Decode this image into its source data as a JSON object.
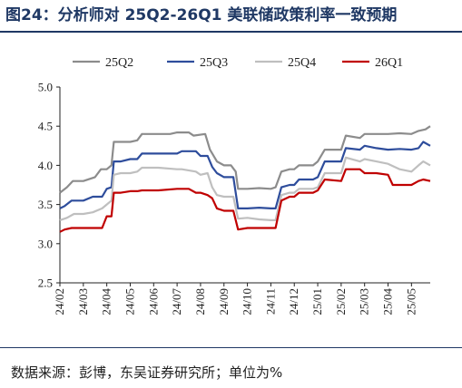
{
  "figure": {
    "title": "图24：分析师对 25Q2-26Q1 美联储政策利率一致预期",
    "source": "数据来源：彭博，东吴证券研究所；单位为%"
  },
  "chart_data": {
    "type": "line",
    "title": "分析师对 25Q2-26Q1 美联储政策利率一致预期",
    "xlabel": "",
    "ylabel": "",
    "ylim": [
      2.5,
      5.0
    ],
    "yticks": [
      "2.5",
      "3.0",
      "3.5",
      "4.0",
      "4.5",
      "5.0"
    ],
    "xticks": [
      "24/02",
      "24/03",
      "24/04",
      "24/05",
      "24/06",
      "24/07",
      "24/08",
      "24/09",
      "24/10",
      "24/11",
      "24/12",
      "25/01",
      "25/02",
      "25/03",
      "25/04",
      "25/05"
    ],
    "xrange": [
      0,
      15.8
    ],
    "legend_position": "top",
    "grid": false,
    "series": [
      {
        "name": "25Q2",
        "color": "#8c8c8c",
        "points": [
          [
            0,
            3.65
          ],
          [
            0.3,
            3.72
          ],
          [
            0.55,
            3.8
          ],
          [
            1,
            3.8
          ],
          [
            1.5,
            3.85
          ],
          [
            1.75,
            3.95
          ],
          [
            2.0,
            3.95
          ],
          [
            2.2,
            4.0
          ],
          [
            2.3,
            4.3
          ],
          [
            3.0,
            4.3
          ],
          [
            3.3,
            4.32
          ],
          [
            3.5,
            4.4
          ],
          [
            4.2,
            4.4
          ],
          [
            4.7,
            4.4
          ],
          [
            5.0,
            4.42
          ],
          [
            5.5,
            4.42
          ],
          [
            5.7,
            4.38
          ],
          [
            6.2,
            4.4
          ],
          [
            6.4,
            4.2
          ],
          [
            6.7,
            4.05
          ],
          [
            7.0,
            4.0
          ],
          [
            7.3,
            4.0
          ],
          [
            7.5,
            3.92
          ],
          [
            7.6,
            3.7
          ],
          [
            8.0,
            3.7
          ],
          [
            8.5,
            3.71
          ],
          [
            9.0,
            3.7
          ],
          [
            9.2,
            3.72
          ],
          [
            9.45,
            3.92
          ],
          [
            9.8,
            3.95
          ],
          [
            10.0,
            3.95
          ],
          [
            10.2,
            4.0
          ],
          [
            10.8,
            4.0
          ],
          [
            11.0,
            4.05
          ],
          [
            11.3,
            4.2
          ],
          [
            12.0,
            4.2
          ],
          [
            12.2,
            4.38
          ],
          [
            12.8,
            4.35
          ],
          [
            13.0,
            4.4
          ],
          [
            13.5,
            4.4
          ],
          [
            14.0,
            4.4
          ],
          [
            14.5,
            4.41
          ],
          [
            15.0,
            4.4
          ],
          [
            15.3,
            4.44
          ],
          [
            15.6,
            4.46
          ],
          [
            15.8,
            4.5
          ]
        ]
      },
      {
        "name": "25Q3",
        "color": "#2e4d9c",
        "points": [
          [
            0,
            3.45
          ],
          [
            0.2,
            3.48
          ],
          [
            0.5,
            3.55
          ],
          [
            1.0,
            3.55
          ],
          [
            1.4,
            3.6
          ],
          [
            1.8,
            3.6
          ],
          [
            2.0,
            3.7
          ],
          [
            2.2,
            3.72
          ],
          [
            2.3,
            4.05
          ],
          [
            2.6,
            4.05
          ],
          [
            3.0,
            4.08
          ],
          [
            3.3,
            4.08
          ],
          [
            3.5,
            4.15
          ],
          [
            4.2,
            4.15
          ],
          [
            5.0,
            4.15
          ],
          [
            5.2,
            4.18
          ],
          [
            5.8,
            4.18
          ],
          [
            6.0,
            4.12
          ],
          [
            6.3,
            4.12
          ],
          [
            6.5,
            3.98
          ],
          [
            6.7,
            3.9
          ],
          [
            7.0,
            3.85
          ],
          [
            7.4,
            3.85
          ],
          [
            7.6,
            3.45
          ],
          [
            8.0,
            3.45
          ],
          [
            8.5,
            3.46
          ],
          [
            9.0,
            3.45
          ],
          [
            9.2,
            3.45
          ],
          [
            9.45,
            3.72
          ],
          [
            9.8,
            3.75
          ],
          [
            10.0,
            3.75
          ],
          [
            10.2,
            3.82
          ],
          [
            10.8,
            3.82
          ],
          [
            11.0,
            3.85
          ],
          [
            11.3,
            4.05
          ],
          [
            12.0,
            4.05
          ],
          [
            12.2,
            4.22
          ],
          [
            12.8,
            4.2
          ],
          [
            13.0,
            4.25
          ],
          [
            13.5,
            4.22
          ],
          [
            14.0,
            4.2
          ],
          [
            14.5,
            4.21
          ],
          [
            15.0,
            4.2
          ],
          [
            15.3,
            4.22
          ],
          [
            15.5,
            4.3
          ],
          [
            15.8,
            4.25
          ]
        ]
      },
      {
        "name": "25Q4",
        "color": "#bfbfbf",
        "points": [
          [
            0,
            3.3
          ],
          [
            0.3,
            3.33
          ],
          [
            0.6,
            3.38
          ],
          [
            1.0,
            3.38
          ],
          [
            1.4,
            3.4
          ],
          [
            1.8,
            3.45
          ],
          [
            2.0,
            3.5
          ],
          [
            2.2,
            3.55
          ],
          [
            2.3,
            3.88
          ],
          [
            2.6,
            3.9
          ],
          [
            3.0,
            3.9
          ],
          [
            3.3,
            3.92
          ],
          [
            3.5,
            3.97
          ],
          [
            4.2,
            3.97
          ],
          [
            5.0,
            3.95
          ],
          [
            5.2,
            3.95
          ],
          [
            5.8,
            3.92
          ],
          [
            6.0,
            3.88
          ],
          [
            6.3,
            3.9
          ],
          [
            6.5,
            3.72
          ],
          [
            6.7,
            3.62
          ],
          [
            7.0,
            3.6
          ],
          [
            7.4,
            3.6
          ],
          [
            7.6,
            3.32
          ],
          [
            8.0,
            3.33
          ],
          [
            8.5,
            3.31
          ],
          [
            9.0,
            3.3
          ],
          [
            9.2,
            3.3
          ],
          [
            9.45,
            3.62
          ],
          [
            9.8,
            3.65
          ],
          [
            10.0,
            3.65
          ],
          [
            10.2,
            3.7
          ],
          [
            10.8,
            3.7
          ],
          [
            11.0,
            3.72
          ],
          [
            11.3,
            3.9
          ],
          [
            12.0,
            3.9
          ],
          [
            12.2,
            4.1
          ],
          [
            12.8,
            4.05
          ],
          [
            13.0,
            4.08
          ],
          [
            13.5,
            4.05
          ],
          [
            14.0,
            4.02
          ],
          [
            14.5,
            3.95
          ],
          [
            15.0,
            3.92
          ],
          [
            15.3,
            4.0
          ],
          [
            15.5,
            4.05
          ],
          [
            15.8,
            4.0
          ]
        ]
      },
      {
        "name": "26Q1",
        "color": "#c00000",
        "points": [
          [
            0,
            3.15
          ],
          [
            0.2,
            3.18
          ],
          [
            0.5,
            3.2
          ],
          [
            1.0,
            3.2
          ],
          [
            1.5,
            3.2
          ],
          [
            1.8,
            3.2
          ],
          [
            2.0,
            3.35
          ],
          [
            2.2,
            3.35
          ],
          [
            2.3,
            3.65
          ],
          [
            2.6,
            3.65
          ],
          [
            3.0,
            3.67
          ],
          [
            3.3,
            3.67
          ],
          [
            3.5,
            3.68
          ],
          [
            4.2,
            3.68
          ],
          [
            5.0,
            3.7
          ],
          [
            5.5,
            3.7
          ],
          [
            5.8,
            3.65
          ],
          [
            6.0,
            3.65
          ],
          [
            6.3,
            3.62
          ],
          [
            6.5,
            3.58
          ],
          [
            6.7,
            3.45
          ],
          [
            7.0,
            3.42
          ],
          [
            7.4,
            3.42
          ],
          [
            7.6,
            3.18
          ],
          [
            8.0,
            3.2
          ],
          [
            8.5,
            3.2
          ],
          [
            9.0,
            3.2
          ],
          [
            9.2,
            3.2
          ],
          [
            9.45,
            3.55
          ],
          [
            9.8,
            3.6
          ],
          [
            10.0,
            3.6
          ],
          [
            10.2,
            3.65
          ],
          [
            10.8,
            3.65
          ],
          [
            11.0,
            3.68
          ],
          [
            11.3,
            3.82
          ],
          [
            12.0,
            3.8
          ],
          [
            12.2,
            3.95
          ],
          [
            12.8,
            3.95
          ],
          [
            13.0,
            3.9
          ],
          [
            13.5,
            3.9
          ],
          [
            14.0,
            3.88
          ],
          [
            14.2,
            3.75
          ],
          [
            14.6,
            3.75
          ],
          [
            15.0,
            3.75
          ],
          [
            15.3,
            3.8
          ],
          [
            15.5,
            3.82
          ],
          [
            15.8,
            3.8
          ]
        ]
      }
    ]
  }
}
